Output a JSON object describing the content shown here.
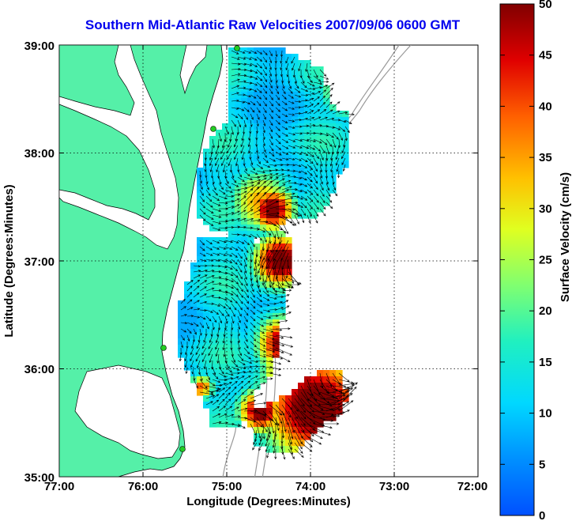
{
  "title": "Southern Mid-Atlantic Raw Velocities 2007/09/06 0600 GMT",
  "x_axis": {
    "label": "Longitude (Degrees:Minutes)",
    "ticks": [
      "77:00",
      "76:00",
      "75:00",
      "74:00",
      "73:00",
      "72:00"
    ]
  },
  "y_axis": {
    "label": "Latitude (Degrees:Minutes)",
    "ticks": [
      "39:00",
      "38:00",
      "37:00",
      "36:00",
      "35:00"
    ]
  },
  "colorbar": {
    "label": "Surface Velocity (cm/s)",
    "ticks": [
      "50",
      "45",
      "40",
      "35",
      "30",
      "25",
      "20",
      "15",
      "10",
      "5",
      "0"
    ],
    "range": [
      0,
      50
    ],
    "colormap": "jet"
  },
  "map_extent": {
    "lon": [
      -77,
      -72
    ],
    "lat": [
      35,
      39
    ]
  },
  "colors": {
    "land": "#55f0a8",
    "title": "#0000ee",
    "coast": "#000000",
    "station": "#22cc22",
    "bathymetry": "#999999"
  }
}
